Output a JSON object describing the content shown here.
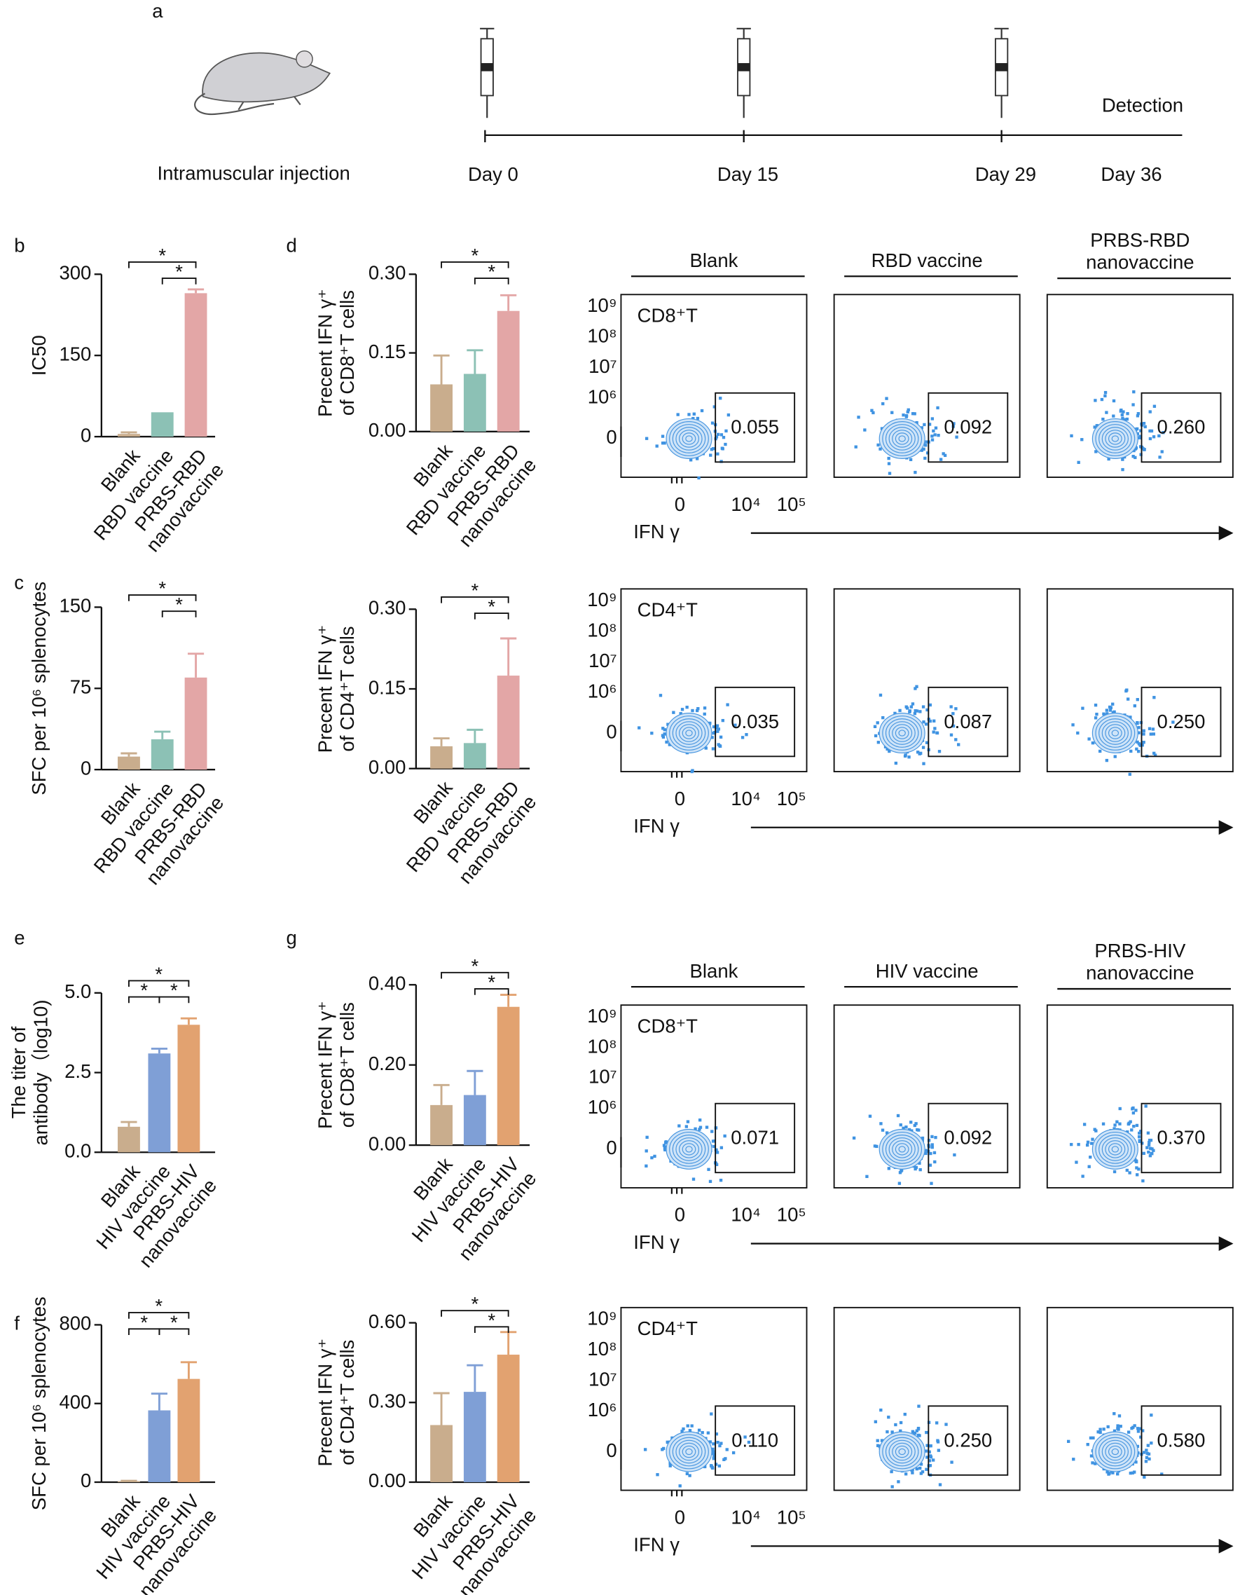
{
  "panel_labels": [
    "a",
    "b",
    "c",
    "d",
    "e",
    "f",
    "g"
  ],
  "timeline": {
    "label": "Intramuscular injection",
    "days": [
      "Day 0",
      "Day 15",
      "Day 29",
      "Day 36"
    ],
    "end": "Detection"
  },
  "chart_data": [
    {
      "type": "bar",
      "ylabel": "IC50",
      "categories": [
        "Blank",
        "RBD vaccine",
        "PRBS-RBD\nnanovaccine"
      ],
      "values": [
        5,
        45,
        265
      ],
      "errors": [
        3,
        0,
        7
      ],
      "colors": [
        "#c9ad8d",
        "#8cc1b5",
        "#e3a6a6"
      ],
      "ylim": [
        0,
        300
      ],
      "yticks": [
        0,
        150,
        300
      ],
      "significance": [
        {
          "from": 0,
          "to": 2,
          "label": "*"
        },
        {
          "from": 1,
          "to": 2,
          "label": "*"
        }
      ]
    },
    {
      "type": "bar",
      "ylabel": "SFC per 10⁶ splenocytes",
      "categories": [
        "Blank",
        "RBD vaccine",
        "PRBS-RBD\nnanovaccine"
      ],
      "values": [
        12,
        28,
        85
      ],
      "errors": [
        3,
        7,
        22
      ],
      "colors": [
        "#c9ad8d",
        "#8cc1b5",
        "#e3a6a6"
      ],
      "ylim": [
        0,
        150
      ],
      "yticks": [
        0,
        75,
        150
      ],
      "significance": [
        {
          "from": 0,
          "to": 2,
          "label": "*"
        },
        {
          "from": 1,
          "to": 2,
          "label": "*"
        }
      ]
    },
    {
      "type": "bar",
      "ylabel": "Precent  IFN γ⁺\nof CD8⁺T cells",
      "categories": [
        "Blank",
        "RBD vaccine",
        "PRBS-RBD\nnanovaccine"
      ],
      "values": [
        0.09,
        0.11,
        0.23
      ],
      "errors": [
        0.055,
        0.045,
        0.03
      ],
      "colors": [
        "#c9ad8d",
        "#8cc1b5",
        "#e3a6a6"
      ],
      "ylim": [
        0,
        0.3
      ],
      "yticks": [
        {
          "value": 0,
          "label": "0.00"
        },
        0.15,
        {
          "value": 0.3,
          "label": "0.30"
        }
      ],
      "significance": [
        {
          "from": 0,
          "to": 2,
          "label": "*"
        },
        {
          "from": 1,
          "to": 2,
          "label": "*"
        }
      ]
    },
    {
      "type": "bar",
      "ylabel": "Precent  IFN γ⁺\nof CD4⁺T cells",
      "categories": [
        "Blank",
        "RBD vaccine",
        "PRBS-RBD\nnanovaccine"
      ],
      "values": [
        0.042,
        0.048,
        0.175
      ],
      "errors": [
        0.015,
        0.025,
        0.07
      ],
      "colors": [
        "#c9ad8d",
        "#8cc1b5",
        "#e3a6a6"
      ],
      "ylim": [
        0,
        0.3
      ],
      "yticks": [
        {
          "value": 0,
          "label": "0.00"
        },
        0.15,
        {
          "value": 0.3,
          "label": "0.30"
        }
      ],
      "significance": [
        {
          "from": 0,
          "to": 2,
          "label": "*"
        },
        {
          "from": 1,
          "to": 2,
          "label": "*"
        }
      ]
    },
    {
      "type": "bar",
      "ylabel": "The titer of\nantibody（log10)",
      "categories": [
        "Blank",
        "HIV vaccine",
        "PRBS-HIV\nnanovaccine"
      ],
      "values": [
        0.8,
        3.1,
        4.0
      ],
      "errors": [
        0.15,
        0.15,
        0.2
      ],
      "colors": [
        "#c9ad8d",
        "#7f9fd6",
        "#e2a270"
      ],
      "ylim": [
        0,
        5
      ],
      "yticks": [
        {
          "value": 0,
          "label": "0.0"
        },
        2.5,
        {
          "value": 5,
          "label": "5.0"
        }
      ],
      "significance": [
        {
          "from": 0,
          "to": 2,
          "label": "*"
        },
        {
          "from": 0,
          "to": 1,
          "label": "*"
        },
        {
          "from": 1,
          "to": 2,
          "label": "*"
        }
      ]
    },
    {
      "type": "bar",
      "ylabel": "SFC per 10⁶ splenocytes",
      "categories": [
        "Blank",
        "HIV vaccine",
        "PRBS-HIV\nnanovaccine"
      ],
      "values": [
        5,
        365,
        525
      ],
      "errors": [
        2,
        85,
        85
      ],
      "colors": [
        "#c9ad8d",
        "#7f9fd6",
        "#e2a270"
      ],
      "ylim": [
        0,
        800
      ],
      "yticks": [
        0,
        400,
        800
      ],
      "significance": [
        {
          "from": 0,
          "to": 2,
          "label": "*"
        },
        {
          "from": 0,
          "to": 1,
          "label": "*"
        },
        {
          "from": 1,
          "to": 2,
          "label": "*"
        }
      ]
    },
    {
      "type": "bar",
      "ylabel": "Precent  IFN γ⁺\nof CD8⁺T cells",
      "categories": [
        "Blank",
        "HIV vaccine",
        "PRBS-HIV\nnanovaccine"
      ],
      "values": [
        0.1,
        0.125,
        0.345
      ],
      "errors": [
        0.05,
        0.06,
        0.03
      ],
      "colors": [
        "#c9ad8d",
        "#7f9fd6",
        "#e2a270"
      ],
      "ylim": [
        0,
        0.4
      ],
      "yticks": [
        {
          "value": 0,
          "label": "0.00"
        },
        {
          "value": 0.2,
          "label": "0.20"
        },
        {
          "value": 0.4,
          "label": "0.40"
        }
      ],
      "significance": [
        {
          "from": 0,
          "to": 2,
          "label": "*"
        },
        {
          "from": 1,
          "to": 2,
          "label": "*"
        }
      ]
    },
    {
      "type": "bar",
      "ylabel": "Precent  IFN γ⁺\nof CD4⁺T cells",
      "categories": [
        "Blank",
        "HIV vaccine",
        "PRBS-HIV\nnanovaccine"
      ],
      "values": [
        0.215,
        0.34,
        0.48
      ],
      "errors": [
        0.12,
        0.1,
        0.085
      ],
      "colors": [
        "#c9ad8d",
        "#7f9fd6",
        "#e2a270"
      ],
      "ylim": [
        0,
        0.6
      ],
      "yticks": [
        {
          "value": 0,
          "label": "0.00"
        },
        {
          "value": 0.3,
          "label": "0.30"
        },
        {
          "value": 0.6,
          "label": "0.60"
        }
      ],
      "significance": [
        {
          "from": 0,
          "to": 2,
          "label": "*"
        },
        {
          "from": 1,
          "to": 2,
          "label": "*"
        }
      ]
    }
  ],
  "flow_axes": {
    "y_ticks": [
      "10⁹",
      "10⁸",
      "10⁷",
      "10⁶",
      "0"
    ],
    "x_ticks": [
      "0",
      "10⁴",
      "10⁵"
    ],
    "x_label": "IFN γ"
  },
  "flow_rows": [
    {
      "headers": [
        "Blank",
        "RBD vaccine",
        "PRBS-RBD\nnanovaccine"
      ],
      "cell": "CD8⁺T",
      "gates": [
        "0.055",
        "0.092",
        "0.260"
      ]
    },
    {
      "cell": "CD4⁺T",
      "gates": [
        "0.035",
        "0.087",
        "0.250"
      ]
    },
    {
      "headers": [
        "Blank",
        "HIV vaccine",
        "PRBS-HIV\nnanovaccine"
      ],
      "cell": "CD8⁺T",
      "gates": [
        "0.071",
        "0.092",
        "0.370"
      ]
    },
    {
      "cell": "CD4⁺T",
      "gates": [
        "0.110",
        "0.250",
        "0.580"
      ]
    }
  ]
}
